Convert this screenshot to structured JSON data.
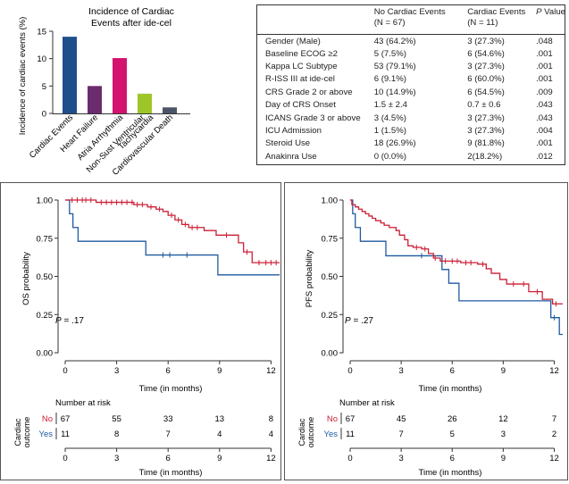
{
  "chart_data": [
    {
      "type": "bar",
      "title": "Incidence of Cardiac Events after ide-cel",
      "title_lines": [
        "Incidence of Cardiac",
        "Events after ide-cel"
      ],
      "ylabel": "Incidence of cardiac events (%)",
      "ylim": [
        0,
        15
      ],
      "yticks": [
        "0",
        "5",
        "10",
        "15"
      ],
      "categories": [
        "Cardiac Events",
        "Heart Failure",
        "Atria Arrhythmia",
        "Non-Sust Ventricular Tachycardia",
        "Cardiovascular Death"
      ],
      "category_labels": [
        "Cardiac Events",
        "Heart Failure",
        "Atria Arrhythmia",
        "Non-Sust Ventricular",
        "Tachycardia",
        "Cardiovascular Death"
      ],
      "values": [
        14.0,
        5.0,
        10.1,
        3.6,
        1.1
      ],
      "colors": [
        "#1f4e8c",
        "#6b2c6e",
        "#d4136f",
        "#9ec628",
        "#4a5568"
      ]
    },
    {
      "type": "table",
      "headers": [
        "",
        "No Cardiac Events",
        "Cardiac Events",
        "P Value"
      ],
      "subheaders": [
        "",
        "(N = 67)",
        "(N = 11)",
        ""
      ],
      "rows": [
        [
          "Gender (Male)",
          "43 (64.2%)",
          "3 (27.3%)",
          ".048"
        ],
        [
          "Baseline ECOG ≥2",
          "5 (7.5%)",
          "6 (54.6%)",
          ".001"
        ],
        [
          "Kappa LC Subtype",
          "53 (79.1%)",
          "3 (27.3%)",
          ".001"
        ],
        [
          "R-ISS III at ide-cel",
          "6 (9.1%)",
          "6 (60.0%)",
          ".001"
        ],
        [
          "CRS Grade 2 or above",
          "10 (14.9%)",
          "6 (54.5%)",
          ".009"
        ],
        [
          "Day of CRS Onset",
          "1.5 ± 2.4",
          "0.7 ± 0.6",
          ".043"
        ],
        [
          "ICANS Grade 3 or above",
          "3 (4.5%)",
          "3 (27.3%)",
          ".043"
        ],
        [
          "ICU Admission",
          "1 (1.5%)",
          "3 (27.3%)",
          ".004"
        ],
        [
          "Steroid Use",
          "18 (26.9%)",
          "9 (81.8%)",
          ".001"
        ],
        [
          "Anakinra Use",
          "0 (0.0%)",
          "2(18.2%)",
          ".012"
        ]
      ]
    },
    {
      "type": "line",
      "kind": "kaplan-meier",
      "ylabel": "OS probability",
      "xlabel": "Time (in months)",
      "xlim": [
        0,
        12.5
      ],
      "ylim": [
        0,
        1
      ],
      "xticks": [
        0,
        3,
        6,
        9,
        12
      ],
      "yticks": [
        "0.00",
        "0.25",
        "0.50",
        "0.75",
        "1.00"
      ],
      "pvalue": "P = .17",
      "pvalue_letter": "P",
      "pvalue_rest": " = .17",
      "series": [
        {
          "name": "No",
          "color": "#cc1f36",
          "steps": [
            [
              0,
              1.0
            ],
            [
              1.8,
              0.985
            ],
            [
              4.0,
              0.97
            ],
            [
              4.8,
              0.955
            ],
            [
              5.3,
              0.94
            ],
            [
              5.7,
              0.925
            ],
            [
              6.0,
              0.9
            ],
            [
              6.4,
              0.87
            ],
            [
              6.8,
              0.84
            ],
            [
              7.2,
              0.82
            ],
            [
              8.1,
              0.8
            ],
            [
              8.8,
              0.77
            ],
            [
              10.1,
              0.72
            ],
            [
              10.4,
              0.66
            ],
            [
              10.9,
              0.59
            ],
            [
              12.5,
              0.59
            ]
          ],
          "censors": [
            0.4,
            0.7,
            1.0,
            1.2,
            1.5,
            2.1,
            2.4,
            2.7,
            3.0,
            3.3,
            3.6,
            3.9,
            4.2,
            4.5,
            5.0,
            5.5,
            6.2,
            6.6,
            7.0,
            7.4,
            7.7,
            9.4,
            10.6,
            11.3,
            11.7,
            12.0,
            12.3
          ]
        },
        {
          "name": "Yes",
          "color": "#1f5aa0",
          "steps": [
            [
              0,
              1.0
            ],
            [
              0.25,
              0.91
            ],
            [
              0.45,
              0.82
            ],
            [
              0.75,
              0.73
            ],
            [
              4.7,
              0.64
            ],
            [
              8.9,
              0.51
            ],
            [
              12.5,
              0.51
            ]
          ],
          "censors": [
            5.7,
            6.1,
            7.1
          ]
        }
      ],
      "risk_table": {
        "title": "Number at risk",
        "group_label": "Cardiac outcome",
        "group_label_lines": [
          "Cardiac",
          "outcome"
        ],
        "times": [
          0,
          3,
          6,
          9,
          12
        ],
        "rows": [
          {
            "name": "No",
            "counts": [
              "67",
              "55",
              "33",
              "13",
              "8"
            ]
          },
          {
            "name": "Yes",
            "counts": [
              "11",
              "8",
              "7",
              "4",
              "4"
            ]
          }
        ]
      }
    },
    {
      "type": "line",
      "kind": "kaplan-meier",
      "ylabel": "PFS probability",
      "xlabel": "Time (in months)",
      "xlim": [
        0,
        12.5
      ],
      "ylim": [
        0,
        1
      ],
      "xticks": [
        0,
        3,
        6,
        9,
        12
      ],
      "yticks": [
        "0.00",
        "0.25",
        "0.50",
        "0.75",
        "1.00"
      ],
      "pvalue": "P = .27",
      "pvalue_letter": "P",
      "pvalue_rest": " = .27",
      "series": [
        {
          "name": "No",
          "color": "#cc1f36",
          "steps": [
            [
              0,
              1.0
            ],
            [
              0.1,
              0.97
            ],
            [
              0.3,
              0.955
            ],
            [
              0.5,
              0.94
            ],
            [
              0.7,
              0.925
            ],
            [
              0.9,
              0.91
            ],
            [
              1.1,
              0.895
            ],
            [
              1.3,
              0.88
            ],
            [
              1.5,
              0.865
            ],
            [
              1.8,
              0.85
            ],
            [
              2.0,
              0.835
            ],
            [
              2.3,
              0.82
            ],
            [
              2.7,
              0.8
            ],
            [
              2.9,
              0.77
            ],
            [
              3.2,
              0.74
            ],
            [
              3.4,
              0.7
            ],
            [
              3.7,
              0.69
            ],
            [
              4.2,
              0.68
            ],
            [
              4.6,
              0.65
            ],
            [
              4.9,
              0.62
            ],
            [
              5.3,
              0.6
            ],
            [
              6.5,
              0.59
            ],
            [
              7.5,
              0.58
            ],
            [
              8.0,
              0.55
            ],
            [
              8.3,
              0.52
            ],
            [
              8.8,
              0.48
            ],
            [
              9.2,
              0.45
            ],
            [
              10.5,
              0.4
            ],
            [
              11.3,
              0.35
            ],
            [
              11.9,
              0.32
            ],
            [
              12.5,
              0.32
            ]
          ],
          "censors": [
            3.9,
            4.4,
            5.0,
            5.6,
            6.0,
            6.3,
            6.8,
            7.1,
            7.8,
            9.6,
            10.2,
            11.0,
            12.1
          ]
        },
        {
          "name": "Yes",
          "color": "#1f5aa0",
          "steps": [
            [
              0,
              1.0
            ],
            [
              0.15,
              0.91
            ],
            [
              0.3,
              0.82
            ],
            [
              0.6,
              0.73
            ],
            [
              2.1,
              0.635
            ],
            [
              5.4,
              0.545
            ],
            [
              5.8,
              0.455
            ],
            [
              6.4,
              0.34
            ],
            [
              11.5,
              0.34
            ],
            [
              11.8,
              0.23
            ],
            [
              12.3,
              0.12
            ],
            [
              12.5,
              0.12
            ]
          ],
          "censors": [
            4.2,
            12.0
          ]
        }
      ],
      "risk_table": {
        "title": "Number at risk",
        "group_label": "Cardiac outcome",
        "group_label_lines": [
          "Cardiac",
          "outcome"
        ],
        "times": [
          0,
          3,
          6,
          9,
          12
        ],
        "rows": [
          {
            "name": "No",
            "counts": [
              "67",
              "45",
              "26",
              "12",
              "7"
            ]
          },
          {
            "name": "Yes",
            "counts": [
              "11",
              "7",
              "5",
              "3",
              "2"
            ]
          }
        ]
      }
    }
  ]
}
